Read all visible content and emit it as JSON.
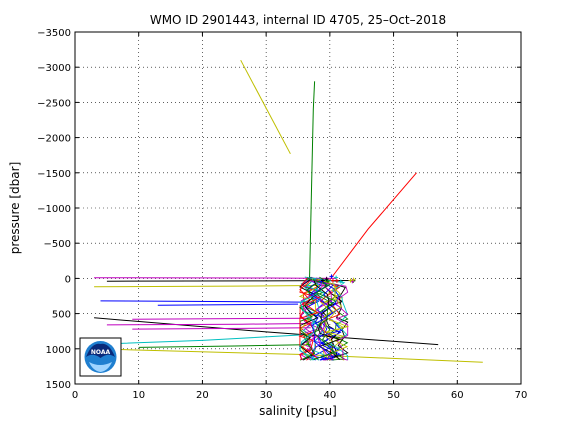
{
  "chart_data": {
    "type": "line",
    "title": "WMO ID 2901443, internal ID 4705, 25–Oct–2018",
    "xlabel": "salinity [psu]",
    "ylabel": "pressure [dbar]",
    "xlim": [
      0,
      70
    ],
    "ylim": [
      -3500,
      1500
    ],
    "y_axis_reversed": true,
    "grid": "dotted",
    "x_ticks": [
      "0",
      "10",
      "20",
      "30",
      "40",
      "50",
      "60",
      "70"
    ],
    "y_ticks": [
      "−3500",
      "−3000",
      "−2500",
      "−2000",
      "−1500",
      "−1000",
      "−500",
      "0",
      "500",
      "1000",
      "1500"
    ],
    "x_tick_values": [
      0,
      10,
      20,
      30,
      40,
      50,
      60,
      70
    ],
    "y_tick_values": [
      -3500,
      -3000,
      -2500,
      -2000,
      -1500,
      -1000,
      -500,
      0,
      500,
      1000,
      1500
    ],
    "logo": "NOAA",
    "series": [
      {
        "color": "#bfbf00",
        "x": [
          26,
          33.8
        ],
        "y": [
          -3100,
          -1770
        ]
      },
      {
        "color": "#008000",
        "x": [
          36.8,
          37.1,
          37.4,
          37.6
        ],
        "y": [
          30,
          -1200,
          -2400,
          -2800
        ]
      },
      {
        "color": "#ff0000",
        "x": [
          39.5,
          46,
          53.6
        ],
        "y": [
          80,
          -700,
          -1500
        ]
      },
      {
        "color": "#bf00bf",
        "x": [
          3,
          30,
          41
        ],
        "y": [
          -10,
          -5,
          0
        ]
      },
      {
        "color": "#000000",
        "x": [
          5,
          30,
          44
        ],
        "y": [
          40,
          35,
          30
        ]
      },
      {
        "color": "#bfbf00",
        "x": [
          3,
          25,
          40
        ],
        "y": [
          120,
          110,
          100
        ]
      },
      {
        "color": "#0000ff",
        "x": [
          4,
          25,
          38
        ],
        "y": [
          320,
          330,
          340
        ]
      },
      {
        "color": "#0000ff",
        "x": [
          13,
          30,
          35
        ],
        "y": [
          380,
          370,
          365
        ]
      },
      {
        "color": "#000000",
        "x": [
          3,
          30,
          57
        ],
        "y": [
          560,
          760,
          940
        ]
      },
      {
        "color": "#bf00bf",
        "x": [
          9,
          28,
          37
        ],
        "y": [
          580,
          570,
          565
        ]
      },
      {
        "color": "#bf00bf",
        "x": [
          5,
          26,
          37
        ],
        "y": [
          660,
          650,
          640
        ]
      },
      {
        "color": "#bf00bf",
        "x": [
          9,
          26,
          37
        ],
        "y": [
          720,
          710,
          700
        ]
      },
      {
        "color": "#00bfbf",
        "x": [
          5,
          20,
          36
        ],
        "y": [
          930,
          880,
          800
        ]
      },
      {
        "color": "#008000",
        "x": [
          10,
          25,
          37
        ],
        "y": [
          980,
          960,
          940
        ]
      },
      {
        "color": "#bfbf00",
        "x": [
          3,
          35,
          64
        ],
        "y": [
          1000,
          1080,
          1190
        ]
      }
    ]
  }
}
